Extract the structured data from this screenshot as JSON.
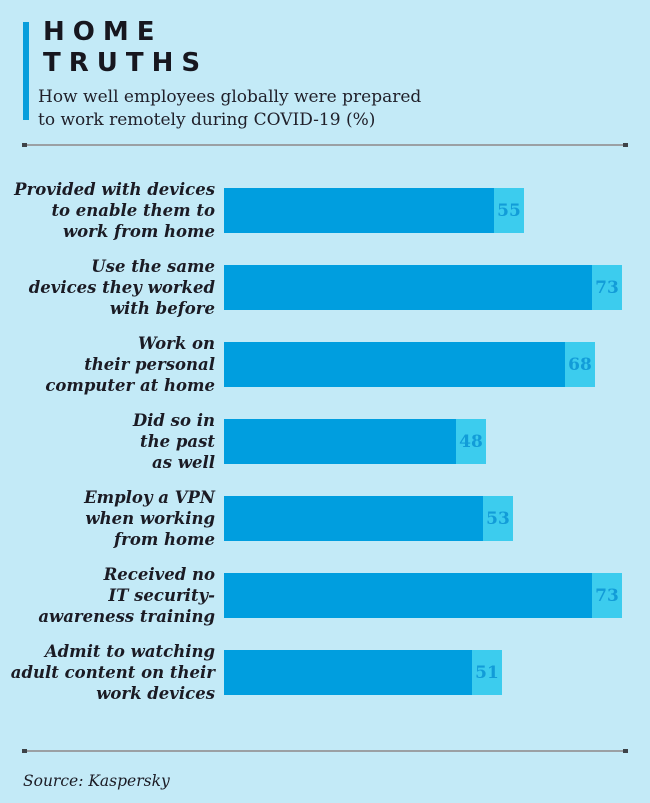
{
  "header": {
    "title_lines": [
      "HOME",
      "TRUTHS"
    ],
    "subtitle": "How well employees globally were prepared\nto work remotely during COVID-19 (%)"
  },
  "footer": {
    "source": "Source: Kaspersky"
  },
  "colors": {
    "background": "#C3EAF7",
    "bar_fill": "#009EDF",
    "bar_tip_fill": "#3CCCEE",
    "value_text": "#129CD8",
    "accent_stripe": "#089EDC",
    "heading_text": "#17171F",
    "divider_line": "#9BA0A4"
  },
  "chart_data": {
    "type": "bar",
    "orientation": "horizontal",
    "title": "HOME TRUTHS",
    "subtitle": "How well employees globally were prepared to work remotely during COVID-19 (%)",
    "unit": "%",
    "xlim": [
      0,
      75
    ],
    "grid": false,
    "legend": false,
    "categories": [
      "Provided with devices\nto enable them to\nwork from home",
      "Use the same\ndevices they worked\nwith before",
      "Work on\ntheir personal\ncomputer at home",
      "Did so in\nthe past\nas well",
      "Employ a VPN\nwhen working\nfrom home",
      "Received no\nIT security-\nawareness training",
      "Admit to watching\nadult content on their\nwork devices"
    ],
    "values": [
      55,
      73,
      68,
      48,
      53,
      73,
      51
    ],
    "source": "Kaspersky"
  }
}
